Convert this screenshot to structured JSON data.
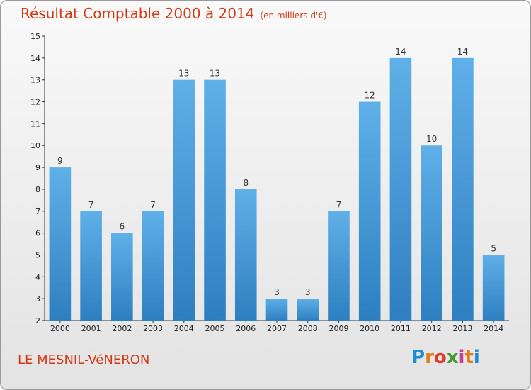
{
  "header": {
    "title": "Résultat Comptable 2000 à 2014",
    "subtitle": "(en milliers d'€)"
  },
  "footer": {
    "place": "LE MESNIL-VéNERON",
    "logo": {
      "letters": [
        "P",
        "r",
        "o",
        "x",
        "i",
        "t",
        "i"
      ],
      "colors": [
        "#1a8fd6",
        "#e37b1b",
        "#e23b2e",
        "#3a9c34",
        "#c83c9a",
        "#e37b1b",
        "#1a8fd6"
      ]
    }
  },
  "colors": {
    "bar_top": "#5fb0e8",
    "bar_bottom": "#2e7fc0",
    "text": "#333333",
    "title": "#d23a17"
  },
  "chart_data": {
    "type": "bar",
    "title": "Résultat Comptable 2000 à 2014",
    "subtitle": "(en milliers d'€)",
    "xlabel": "",
    "ylabel": "",
    "categories": [
      "2000",
      "2001",
      "2002",
      "2003",
      "2004",
      "2005",
      "2006",
      "2007",
      "2008",
      "2009",
      "2010",
      "2011",
      "2012",
      "2013",
      "2014"
    ],
    "values": [
      9,
      7,
      6,
      7,
      13,
      13,
      8,
      3,
      3,
      7,
      12,
      14,
      10,
      14,
      5
    ],
    "ylim": [
      2,
      15
    ],
    "yticks": [
      2,
      3,
      4,
      5,
      6,
      7,
      8,
      9,
      10,
      11,
      12,
      13,
      14,
      15
    ],
    "grid": false
  }
}
